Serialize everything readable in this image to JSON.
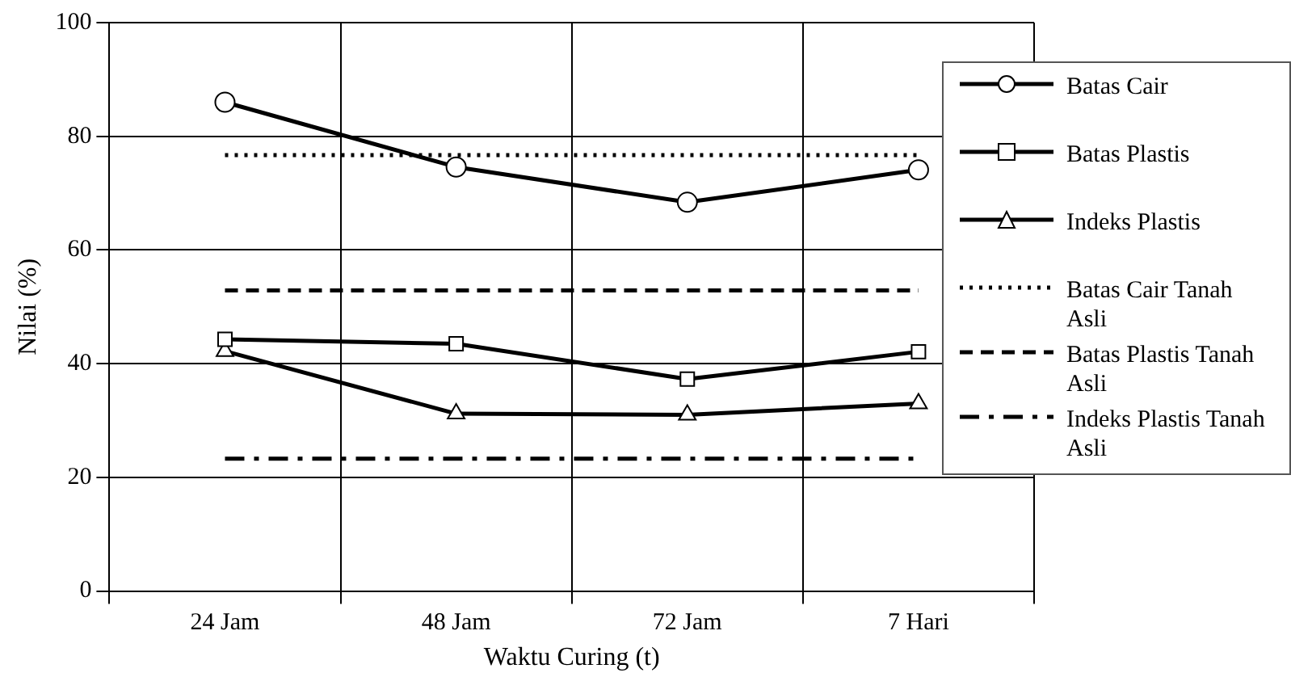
{
  "chart_data": {
    "type": "line",
    "categories": [
      "24 Jam",
      "48 Jam",
      "72 Jam",
      "7 Hari"
    ],
    "xlabel": "Waktu Curing (t)",
    "ylabel": "Nilai (%)",
    "ylim": [
      0,
      100
    ],
    "yticks": [
      0,
      20,
      40,
      60,
      80,
      100
    ],
    "grid": true,
    "legend": "right",
    "series": [
      {
        "name": "Batas Cair",
        "color": "#000000",
        "values": [
          86,
          74.6,
          68.4,
          74.1
        ],
        "marker": "circle",
        "line_style": "solid"
      },
      {
        "name": "Batas Plastis",
        "color": "#000000",
        "values": [
          44.3,
          43.5,
          37.3,
          42.1
        ],
        "marker": "square",
        "line_style": "solid"
      },
      {
        "name": "Indeks Plastis",
        "color": "#000000",
        "values": [
          42.2,
          31.2,
          31,
          33
        ],
        "marker": "triangle",
        "line_style": "solid"
      },
      {
        "name": "Batas Cair Tanah Asli",
        "color": "#000000",
        "values": [
          76.7,
          76.7,
          76.7,
          76.7
        ],
        "marker": "none",
        "line_style": "dotted"
      },
      {
        "name": "Batas Plastis Tanah Asli",
        "color": "#000000",
        "values": [
          52.9,
          52.9,
          52.9,
          52.9
        ],
        "marker": "none",
        "line_style": "dashed"
      },
      {
        "name": "Indeks Plastis Tanah Asli",
        "color": "#000000",
        "values": [
          23.3,
          23.3,
          23.3,
          23.3
        ],
        "marker": "none",
        "line_style": "dashdot"
      }
    ]
  }
}
